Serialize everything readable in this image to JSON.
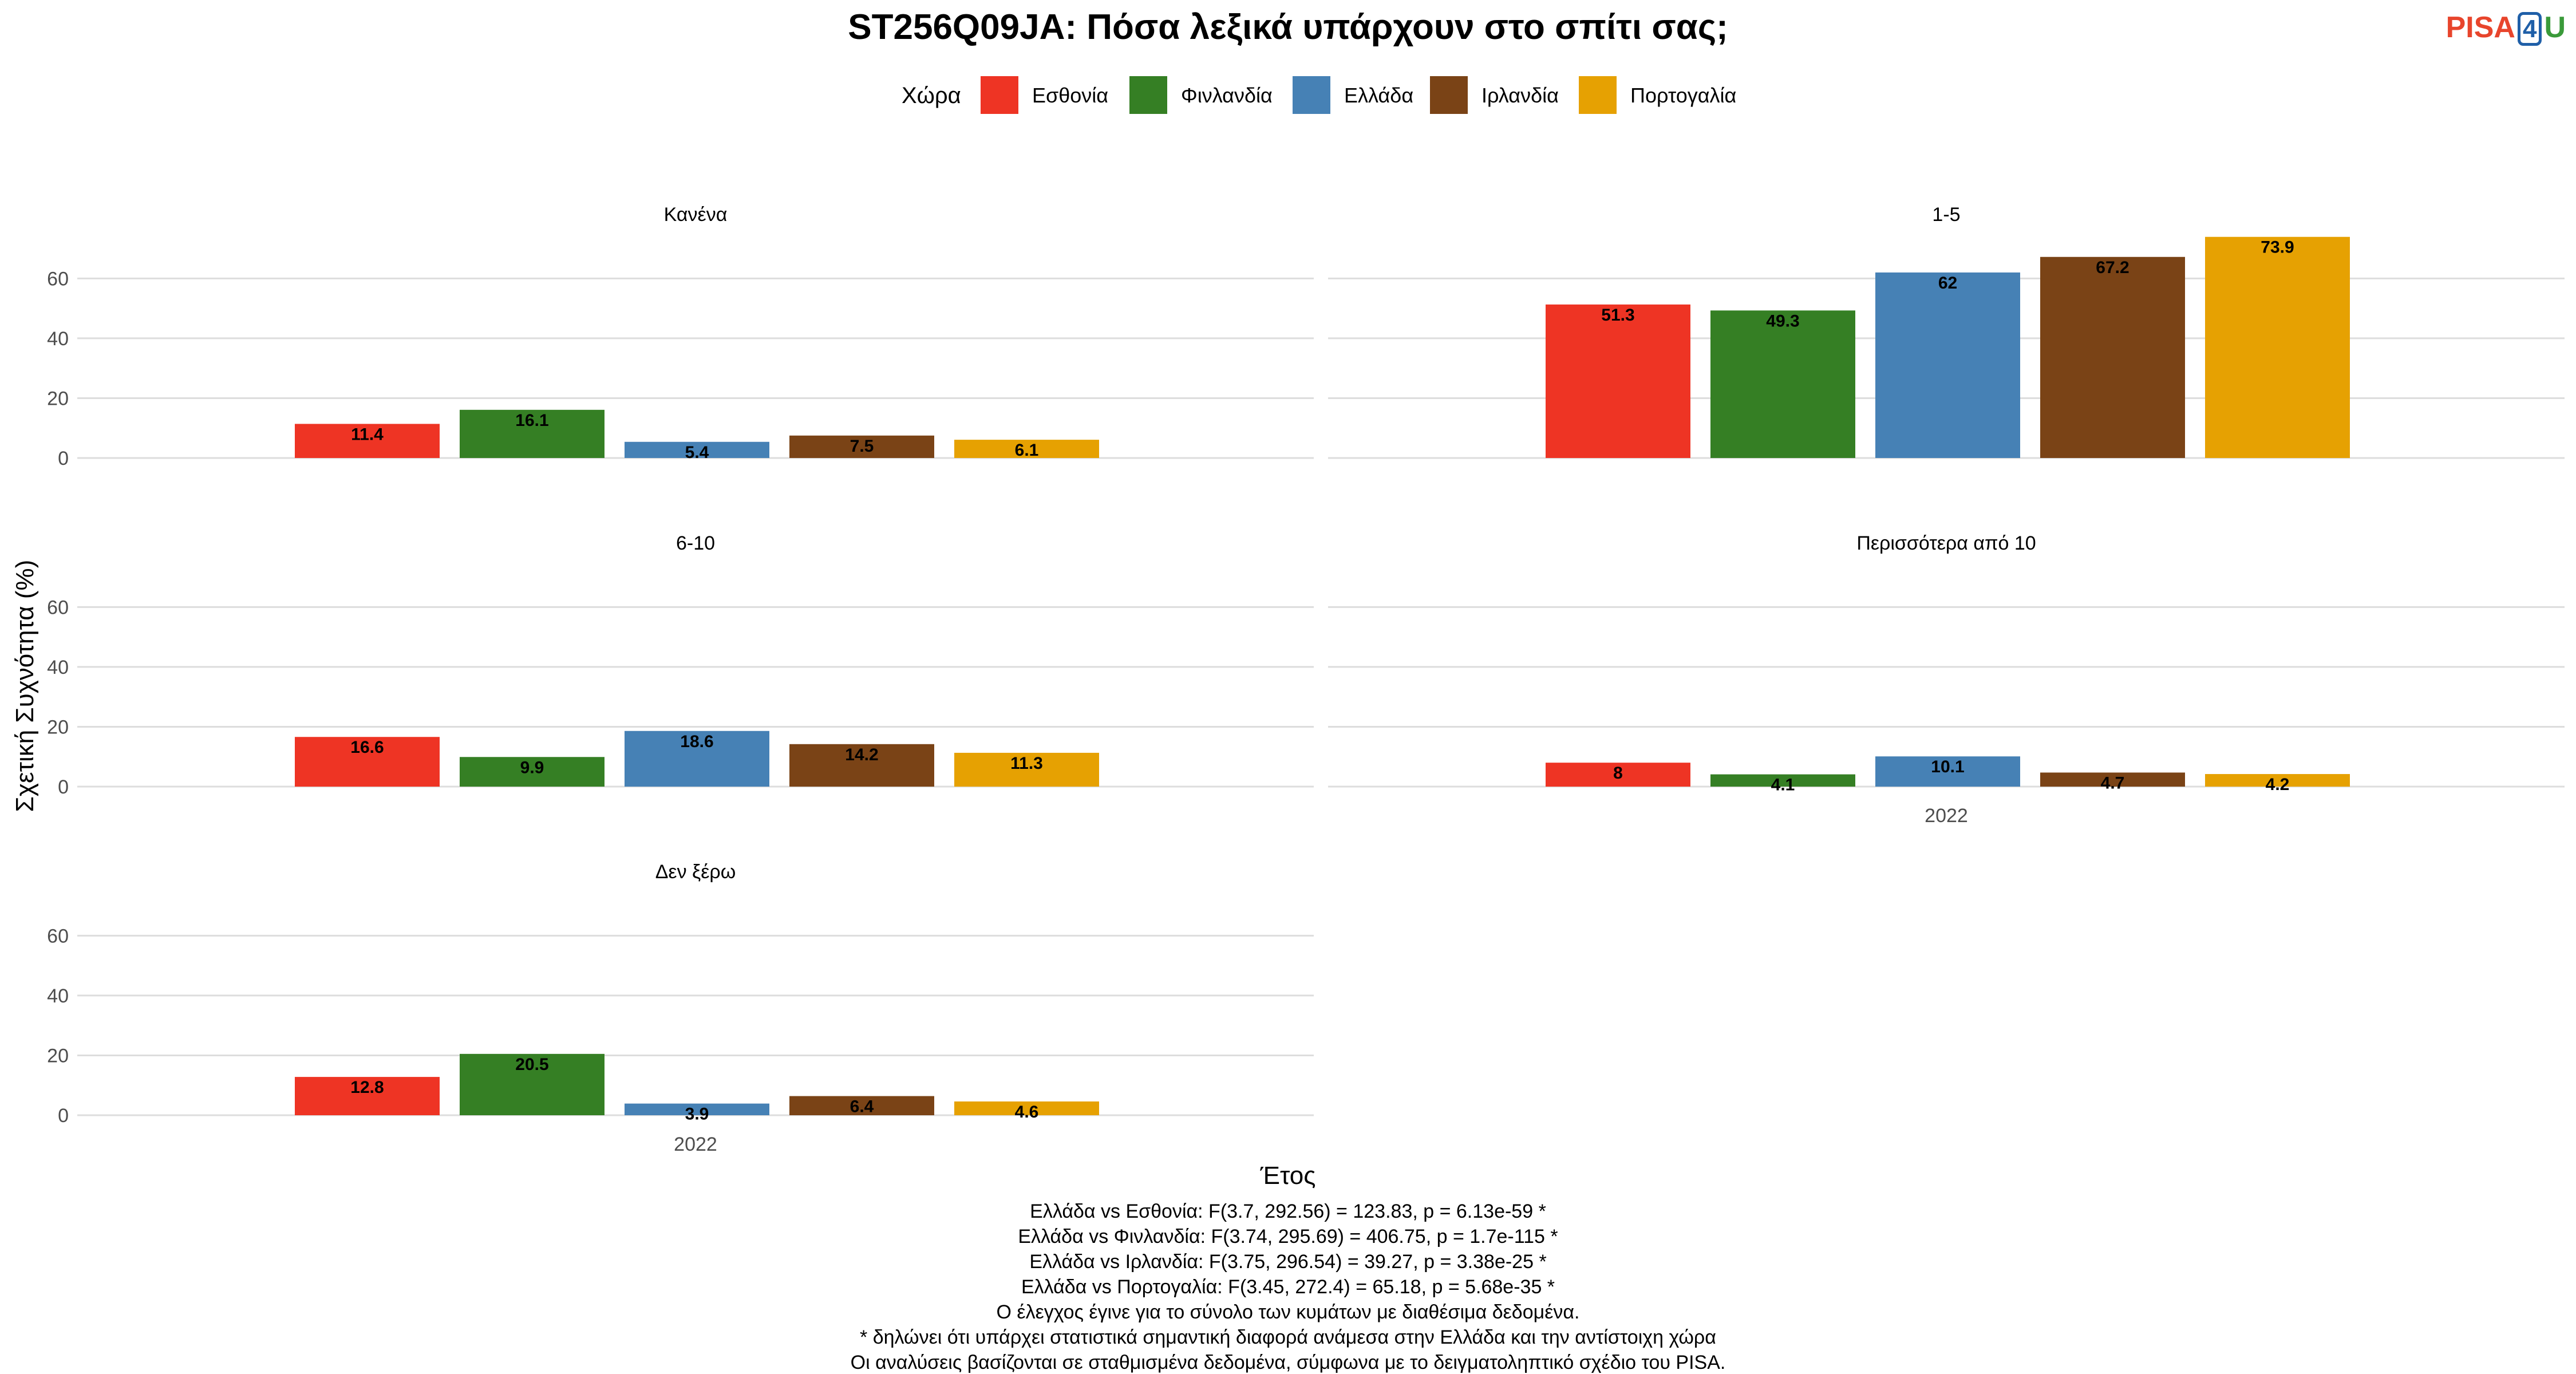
{
  "logo": {
    "part1": "PISA",
    "part2": "4",
    "part3": "U"
  },
  "chart_data": {
    "type": "bar",
    "title": "ST256Q09JA: Πόσα λεξικά υπάρχουν στο σπίτι σας;",
    "legend": {
      "title": "Χώρα",
      "placement": "top",
      "entries": [
        "Εσθονία",
        "Φινλανδία",
        "Ελλάδα",
        "Ιρλανδία",
        "Πορτογαλία"
      ]
    },
    "colors": {
      "Εσθονία": "#EE3424",
      "Φινλανδία": "#357F24",
      "Ελλάδα": "#4681B5",
      "Ιρλανδία": "#7A4316",
      "Πορτογαλία": "#E6A102"
    },
    "xlabel": "Έτος",
    "ylabel": "Σχετική Συχνότητα (%)",
    "x_category": "2022",
    "ylim": [
      0,
      75
    ],
    "yticks": [
      0,
      20,
      40,
      60
    ],
    "grid": true,
    "panels": [
      {
        "label": "Κανένα",
        "values": [
          11.4,
          16.1,
          5.4,
          7.5,
          6.1
        ],
        "value_labels": [
          "11.4",
          "16.1",
          "5.4",
          "7.5",
          "6.1"
        ]
      },
      {
        "label": "1-5",
        "values": [
          51.3,
          49.3,
          62,
          67.2,
          73.9
        ],
        "value_labels": [
          "51.3",
          "49.3",
          "62",
          "67.2",
          "73.9"
        ]
      },
      {
        "label": "6-10",
        "values": [
          16.6,
          9.9,
          18.6,
          14.2,
          11.3
        ],
        "value_labels": [
          "16.6",
          "9.9",
          "18.6",
          "14.2",
          "11.3"
        ]
      },
      {
        "label": "Περισσότερα από 10",
        "values": [
          8,
          4.1,
          10.1,
          4.7,
          4.2
        ],
        "value_labels": [
          "8",
          "4.1",
          "10.1",
          "4.7",
          "4.2"
        ]
      },
      {
        "label": "Δεν ξέρω",
        "values": [
          12.8,
          20.5,
          3.9,
          6.4,
          4.6
        ],
        "value_labels": [
          "12.8",
          "20.5",
          "3.9",
          "6.4",
          "4.6"
        ]
      }
    ],
    "caption": [
      "Ελλάδα vs Εσθονία: F(3.7, 292.56) = 123.83, p = 6.13e-59 *",
      "Ελλάδα vs Φινλανδία: F(3.74, 295.69) = 406.75, p = 1.7e-115 *",
      "Ελλάδα vs Ιρλανδία: F(3.75, 296.54) = 39.27, p = 3.38e-25 *",
      "Ελλάδα vs Πορτογαλία: F(3.45, 272.4) = 65.18, p = 5.68e-35 *",
      "Ο έλεγχος έγινε για το σύνολο των κυμάτων με διαθέσιμα δεδομένα.",
      "* δηλώνει ότι υπάρχει στατιστικά σημαντική διαφορά ανάμεσα στην Ελλάδα και την αντίστοιχη χώρα",
      "Οι αναλύσεις βασίζονται σε σταθμισμένα δεδομένα, σύμφωνα με το δειγματοληπτικό σχέδιο του PISA."
    ]
  }
}
